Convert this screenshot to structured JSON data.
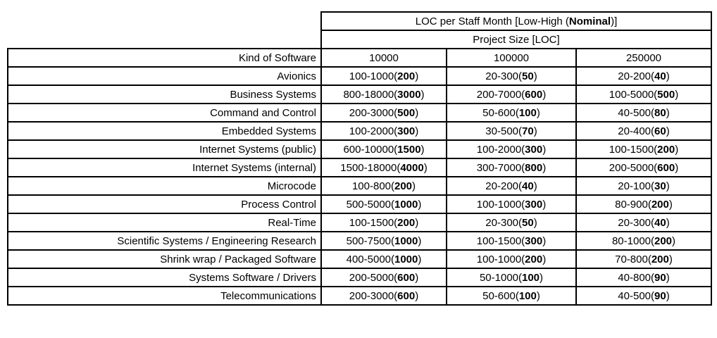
{
  "table": {
    "title": {
      "prefix": "LOC per Staff Month [Low-High (",
      "bold": "Nominal",
      "suffix": ")]"
    },
    "subtitle": "Project Size [LOC]",
    "row_header_label": "Kind of Software",
    "size_columns": [
      "10000",
      "100000",
      "250000"
    ],
    "rows": [
      {
        "kind": "Avionics",
        "cells": [
          {
            "range": "100-1000",
            "nominal": "200"
          },
          {
            "range": "20-300",
            "nominal": "50"
          },
          {
            "range": "20-200",
            "nominal": "40"
          }
        ]
      },
      {
        "kind": "Business Systems",
        "cells": [
          {
            "range": "800-18000",
            "nominal": "3000"
          },
          {
            "range": "200-7000",
            "nominal": "600"
          },
          {
            "range": "100-5000",
            "nominal": "500"
          }
        ]
      },
      {
        "kind": "Command and Control",
        "cells": [
          {
            "range": "200-3000",
            "nominal": "500"
          },
          {
            "range": "50-600",
            "nominal": "100"
          },
          {
            "range": "40-500",
            "nominal": "80"
          }
        ]
      },
      {
        "kind": "Embedded Systems",
        "cells": [
          {
            "range": "100-2000",
            "nominal": "300"
          },
          {
            "range": "30-500",
            "nominal": "70"
          },
          {
            "range": "20-400",
            "nominal": "60"
          }
        ]
      },
      {
        "kind": "Internet Systems (public)",
        "cells": [
          {
            "range": "600-10000",
            "nominal": "1500"
          },
          {
            "range": "100-2000",
            "nominal": "300"
          },
          {
            "range": "100-1500",
            "nominal": "200"
          }
        ]
      },
      {
        "kind": "Internet Systems (internal)",
        "cells": [
          {
            "range": "1500-18000",
            "nominal": "4000"
          },
          {
            "range": "300-7000",
            "nominal": "800"
          },
          {
            "range": "200-5000",
            "nominal": "600"
          }
        ]
      },
      {
        "kind": "Microcode",
        "cells": [
          {
            "range": "100-800",
            "nominal": "200"
          },
          {
            "range": "20-200",
            "nominal": "40"
          },
          {
            "range": "20-100",
            "nominal": "30"
          }
        ]
      },
      {
        "kind": "Process Control",
        "cells": [
          {
            "range": "500-5000",
            "nominal": "1000"
          },
          {
            "range": "100-1000",
            "nominal": "300"
          },
          {
            "range": "80-900",
            "nominal": "200"
          }
        ]
      },
      {
        "kind": "Real-Time",
        "cells": [
          {
            "range": "100-1500",
            "nominal": "200"
          },
          {
            "range": "20-300",
            "nominal": "50"
          },
          {
            "range": "20-300",
            "nominal": "40"
          }
        ]
      },
      {
        "kind": "Scientific Systems / Engineering Research",
        "cells": [
          {
            "range": "500-7500",
            "nominal": "1000"
          },
          {
            "range": "100-1500",
            "nominal": "300"
          },
          {
            "range": "80-1000",
            "nominal": "200"
          }
        ]
      },
      {
        "kind": "Shrink wrap / Packaged Software",
        "cells": [
          {
            "range": "400-5000",
            "nominal": "1000"
          },
          {
            "range": "100-1000",
            "nominal": "200"
          },
          {
            "range": "70-800",
            "nominal": "200"
          }
        ]
      },
      {
        "kind": "Systems Software / Drivers",
        "cells": [
          {
            "range": "200-5000",
            "nominal": "600"
          },
          {
            "range": "50-1000",
            "nominal": "100"
          },
          {
            "range": "40-800",
            "nominal": "90"
          }
        ]
      },
      {
        "kind": "Telecommunications",
        "cells": [
          {
            "range": "200-3000",
            "nominal": "600"
          },
          {
            "range": "50-600",
            "nominal": "100"
          },
          {
            "range": "40-500",
            "nominal": "90"
          }
        ]
      }
    ]
  }
}
